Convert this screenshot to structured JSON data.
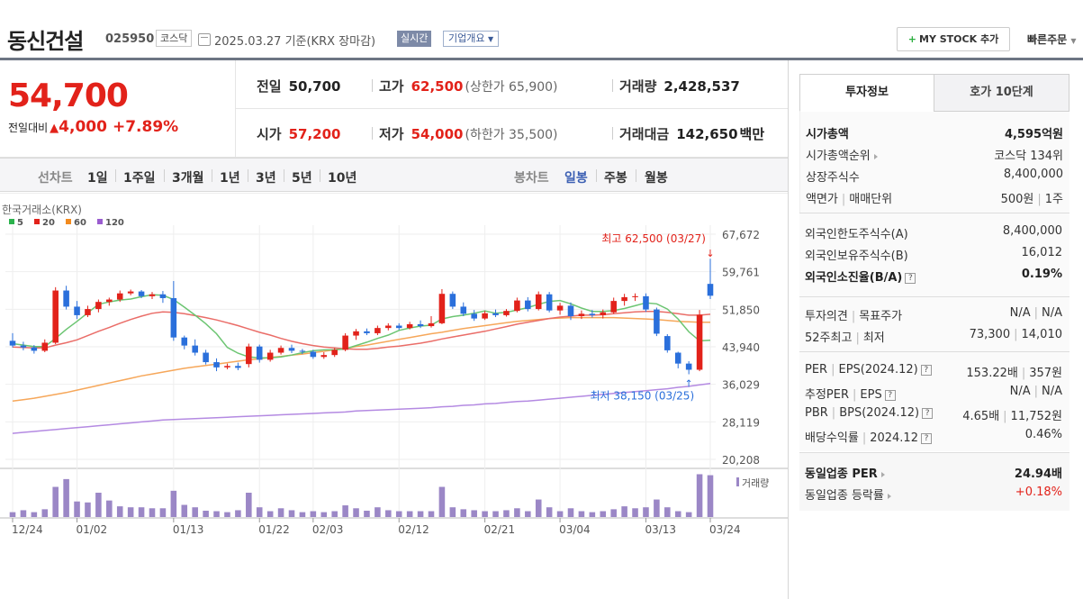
{
  "header": {
    "stock_name": "동신건설",
    "stock_code": "025950",
    "market_badge": "코스닥",
    "date_text": "2025.03.27  기준(KRX 장마감)",
    "realtime_label": "실시간",
    "company_info_label": "기업개요",
    "my_stock_label": "MY STOCK 추가",
    "quick_order_label": "빠른주문"
  },
  "price": {
    "current": "54,700",
    "diff_label": "전일대비",
    "diff_value": "4,000",
    "diff_rate": "+7.89%",
    "prev_close_label": "전일",
    "prev_close": "50,700",
    "high_label": "고가",
    "high": "62,500",
    "upper_limit": "(상한가 65,900)",
    "volume_label": "거래량",
    "volume": "2,428,537",
    "open_label": "시가",
    "open": "57,200",
    "low_label": "저가",
    "low": "54,000",
    "lower_limit": "(하한가 35,500)",
    "amount_label": "거래대금",
    "amount": "142,650",
    "amount_unit": "백만"
  },
  "tabs": {
    "line_label": "선차트",
    "line_items": [
      "1일",
      "1주일",
      "3개월",
      "1년",
      "3년",
      "5년",
      "10년"
    ],
    "candle_label": "봉차트",
    "candle_items": [
      "일봉",
      "주봉",
      "월봉"
    ],
    "candle_selected": "일봉"
  },
  "chart_data": {
    "type": "candlestick",
    "source_label": "한국거래소(KRX)",
    "legend": [
      {
        "name": "5",
        "color": "#2bb24c"
      },
      {
        "name": "20",
        "color": "#e2221a"
      },
      {
        "name": "60",
        "color": "#f28a1e"
      },
      {
        "name": "120",
        "color": "#9a5ccf"
      }
    ],
    "y_ticks": [
      "67,672",
      "59,761",
      "51,850",
      "43,940",
      "36,029",
      "28,119",
      "20,208"
    ],
    "y_range": [
      20208,
      67672
    ],
    "x_tick_labels": [
      "12/24",
      "01/02",
      "01/13",
      "01/22",
      "02/03",
      "02/12",
      "02/21",
      "03/04",
      "03/13",
      "03/24"
    ],
    "max_annotation": "최고 62,500 (03/27)",
    "min_annotation": "최저 38,150 (03/25)",
    "volume_label": "거래량",
    "candles": [
      [
        45200,
        46800,
        43800,
        44200
      ],
      [
        44200,
        45000,
        43200,
        43800
      ],
      [
        43800,
        44300,
        42500,
        43100
      ],
      [
        43100,
        45500,
        42800,
        44800
      ],
      [
        44800,
        56500,
        44500,
        55800
      ],
      [
        55800,
        56800,
        51800,
        52400
      ],
      [
        52400,
        53600,
        49800,
        50600
      ],
      [
        50600,
        52600,
        50200,
        51900
      ],
      [
        51900,
        53900,
        51200,
        53400
      ],
      [
        53400,
        54300,
        52600,
        53900
      ],
      [
        53900,
        55800,
        53400,
        55200
      ],
      [
        55200,
        56000,
        54800,
        55600
      ],
      [
        55600,
        55900,
        54200,
        54600
      ],
      [
        54600,
        55500,
        54000,
        55000
      ],
      [
        55000,
        55700,
        53200,
        54200
      ],
      [
        54200,
        57800,
        45200,
        45900
      ],
      [
        45900,
        46300,
        43400,
        44200
      ],
      [
        44200,
        45500,
        42100,
        42700
      ],
      [
        42700,
        43300,
        40200,
        40700
      ],
      [
        40700,
        41500,
        38800,
        39600
      ],
      [
        39600,
        40400,
        39200,
        39900
      ],
      [
        39900,
        40600,
        39000,
        39500
      ],
      [
        40300,
        44600,
        39600,
        44000
      ],
      [
        44000,
        44400,
        40600,
        41200
      ],
      [
        41200,
        43300,
        40800,
        42700
      ],
      [
        42700,
        44200,
        42300,
        43700
      ],
      [
        43700,
        44400,
        42600,
        43100
      ],
      [
        43100,
        43500,
        42400,
        42900
      ],
      [
        42900,
        43300,
        41400,
        41800
      ],
      [
        41800,
        42800,
        41400,
        42200
      ],
      [
        42200,
        43700,
        41800,
        43300
      ],
      [
        43300,
        46800,
        43000,
        46300
      ],
      [
        46300,
        47700,
        45400,
        47200
      ],
      [
        47200,
        47800,
        46400,
        46800
      ],
      [
        46800,
        48400,
        46400,
        47900
      ],
      [
        47900,
        48900,
        47400,
        48400
      ],
      [
        48400,
        48900,
        47500,
        47900
      ],
      [
        47900,
        49200,
        47600,
        48700
      ],
      [
        48700,
        49500,
        47900,
        48300
      ],
      [
        48300,
        50400,
        48000,
        48900
      ],
      [
        48900,
        56100,
        48700,
        55100
      ],
      [
        55100,
        55600,
        51900,
        52400
      ],
      [
        52400,
        53300,
        50400,
        50900
      ],
      [
        50900,
        51700,
        49400,
        49900
      ],
      [
        49900,
        51500,
        49600,
        51000
      ],
      [
        51000,
        51800,
        50200,
        50600
      ],
      [
        50600,
        51900,
        50300,
        51500
      ],
      [
        51500,
        54300,
        51200,
        53700
      ],
      [
        53700,
        54400,
        51400,
        51900
      ],
      [
        51900,
        55600,
        51600,
        55000
      ],
      [
        55000,
        55500,
        51200,
        51600
      ],
      [
        51600,
        53200,
        50700,
        52600
      ],
      [
        52600,
        53300,
        49600,
        50400
      ],
      [
        50400,
        51600,
        49800,
        50900
      ],
      [
        50900,
        51700,
        50100,
        50600
      ],
      [
        50600,
        51800,
        49900,
        51200
      ],
      [
        51200,
        54300,
        50900,
        53600
      ],
      [
        53600,
        55100,
        52600,
        54400
      ],
      [
        54400,
        55200,
        53600,
        54600
      ],
      [
        54600,
        55200,
        51300,
        51800
      ],
      [
        51800,
        52200,
        46200,
        46700
      ],
      [
        46200,
        46600,
        42700,
        43200
      ],
      [
        42700,
        42900,
        39400,
        40400
      ],
      [
        40400,
        40900,
        38150,
        39100
      ],
      [
        39100,
        51700,
        38800,
        50700
      ],
      [
        57200,
        62500,
        54000,
        54700
      ]
    ],
    "ma_series": {
      "ma5": [
        44600,
        44300,
        44000,
        44000,
        45700,
        47600,
        49300,
        51100,
        52900,
        53400,
        53800,
        54000,
        54500,
        54900,
        54800,
        53900,
        52300,
        50600,
        48800,
        46700,
        43800,
        42600,
        41800,
        41600,
        41600,
        41800,
        42200,
        42700,
        43100,
        43300,
        43300,
        43500,
        44200,
        44900,
        45700,
        46400,
        47400,
        47900,
        48300,
        48500,
        49800,
        50300,
        50600,
        51000,
        51500,
        51000,
        51200,
        51700,
        52200,
        52900,
        53500,
        53700,
        53000,
        52100,
        51400,
        51400,
        51600,
        52000,
        52600,
        53200,
        53000,
        51900,
        49800,
        47100,
        45200,
        45300
      ],
      "ma20": [
        43900,
        43800,
        43700,
        43700,
        44300,
        44800,
        45400,
        46300,
        47200,
        48000,
        48900,
        49700,
        50400,
        51000,
        51300,
        51200,
        50900,
        50500,
        50100,
        49600,
        49000,
        48400,
        47700,
        47000,
        46400,
        45700,
        45100,
        44600,
        44200,
        43900,
        43700,
        43500,
        43400,
        43400,
        43600,
        43900,
        44100,
        44400,
        44700,
        45100,
        45600,
        46000,
        46400,
        46800,
        47200,
        47700,
        48200,
        48700,
        49100,
        49500,
        49900,
        50200,
        50400,
        50600,
        50600,
        50700,
        50900,
        51100,
        51300,
        51400,
        51400,
        51200,
        50900,
        50600,
        50600,
        50800
      ],
      "ma60": [
        32500,
        32800,
        33100,
        33500,
        33900,
        34300,
        34800,
        35300,
        35800,
        36300,
        36800,
        37300,
        37800,
        38200,
        38600,
        39000,
        39400,
        39700,
        40000,
        40300,
        40600,
        40900,
        41200,
        41400,
        41700,
        41900,
        42200,
        42400,
        42700,
        43000,
        43300,
        43600,
        44000,
        44300,
        44700,
        45100,
        45500,
        45900,
        46300,
        46700,
        47000,
        47400,
        47800,
        48100,
        48400,
        48700,
        49000,
        49300,
        49500,
        49700,
        49900,
        50000,
        50100,
        50100,
        50100,
        50100,
        50100,
        50000,
        49900,
        49800,
        49700,
        49500,
        49300,
        49200,
        49100,
        49100
      ],
      "ma120": [
        25700,
        25900,
        26100,
        26300,
        26500,
        26700,
        26900,
        27100,
        27300,
        27500,
        27700,
        27900,
        28100,
        28300,
        28500,
        28600,
        28700,
        28800,
        28900,
        29000,
        29100,
        29200,
        29300,
        29400,
        29500,
        29600,
        29700,
        29800,
        29900,
        30000,
        30100,
        30200,
        30400,
        30500,
        30600,
        30700,
        30800,
        30900,
        31000,
        31100,
        31300,
        31400,
        31600,
        31700,
        31900,
        32000,
        32200,
        32400,
        32500,
        32700,
        32900,
        33100,
        33300,
        33500,
        33700,
        33900,
        34100,
        34300,
        34500,
        34700,
        34900,
        35100,
        35400,
        35600,
        35900,
        36200
      ]
    },
    "volume": [
      0.1,
      0.14,
      0.1,
      0.16,
      0.62,
      0.78,
      0.32,
      0.3,
      0.5,
      0.34,
      0.22,
      0.2,
      0.2,
      0.18,
      0.18,
      0.54,
      0.25,
      0.2,
      0.13,
      0.12,
      0.1,
      0.14,
      0.5,
      0.2,
      0.12,
      0.18,
      0.14,
      0.1,
      0.12,
      0.1,
      0.12,
      0.24,
      0.18,
      0.13,
      0.2,
      0.14,
      0.12,
      0.12,
      0.12,
      0.12,
      0.62,
      0.2,
      0.16,
      0.14,
      0.12,
      0.12,
      0.14,
      0.18,
      0.12,
      0.36,
      0.2,
      0.12,
      0.18,
      0.12,
      0.1,
      0.12,
      0.16,
      0.22,
      0.18,
      0.2,
      0.36,
      0.2,
      0.12,
      0.1,
      0.88,
      0.86
    ]
  },
  "invest_info": {
    "tab_on": "투자정보",
    "tab_off": "호가 10단계",
    "market_cap_label": "시가총액",
    "market_cap": "4,595억원",
    "market_cap_rank_label": "시가총액순위",
    "market_cap_rank": "코스닥 134위",
    "shares_label": "상장주식수",
    "shares": "8,400,000",
    "par_label": "액면가",
    "par_sep_label": "매매단위",
    "par_value": "500원",
    "trade_unit": "1주",
    "foreign_limit_label": "외국인한도주식수(A)",
    "foreign_limit": "8,400,000",
    "foreign_hold_label": "외국인보유주식수(B)",
    "foreign_hold": "16,012",
    "foreign_rate_label": "외국인소진율(B/A)",
    "foreign_rate": "0.19%",
    "opinion_label": "투자의견",
    "target_label": "목표주가",
    "opinion": "N/A",
    "target": "N/A",
    "w52_label": "52주최고",
    "w52_low_label": "최저",
    "w52_high": "73,300",
    "w52_low": "14,010",
    "per_label": "PER",
    "eps_label": "EPS(2024.12)",
    "per": "153.22배",
    "eps": "357원",
    "est_per_label": "추정PER",
    "est_eps_label": "EPS",
    "est_per": "N/A",
    "est_eps": "N/A",
    "pbr_label": "PBR",
    "bps_label": "BPS(2024.12)",
    "pbr": "4.65배",
    "bps": "11,752원",
    "div_label": "배당수익률",
    "div_date": "2024.12",
    "div": "0.46%",
    "ind_per_label": "동일업종 PER",
    "ind_per": "24.94배",
    "ind_rate_label": "동일업종 등락률",
    "ind_rate": "+0.18%"
  }
}
